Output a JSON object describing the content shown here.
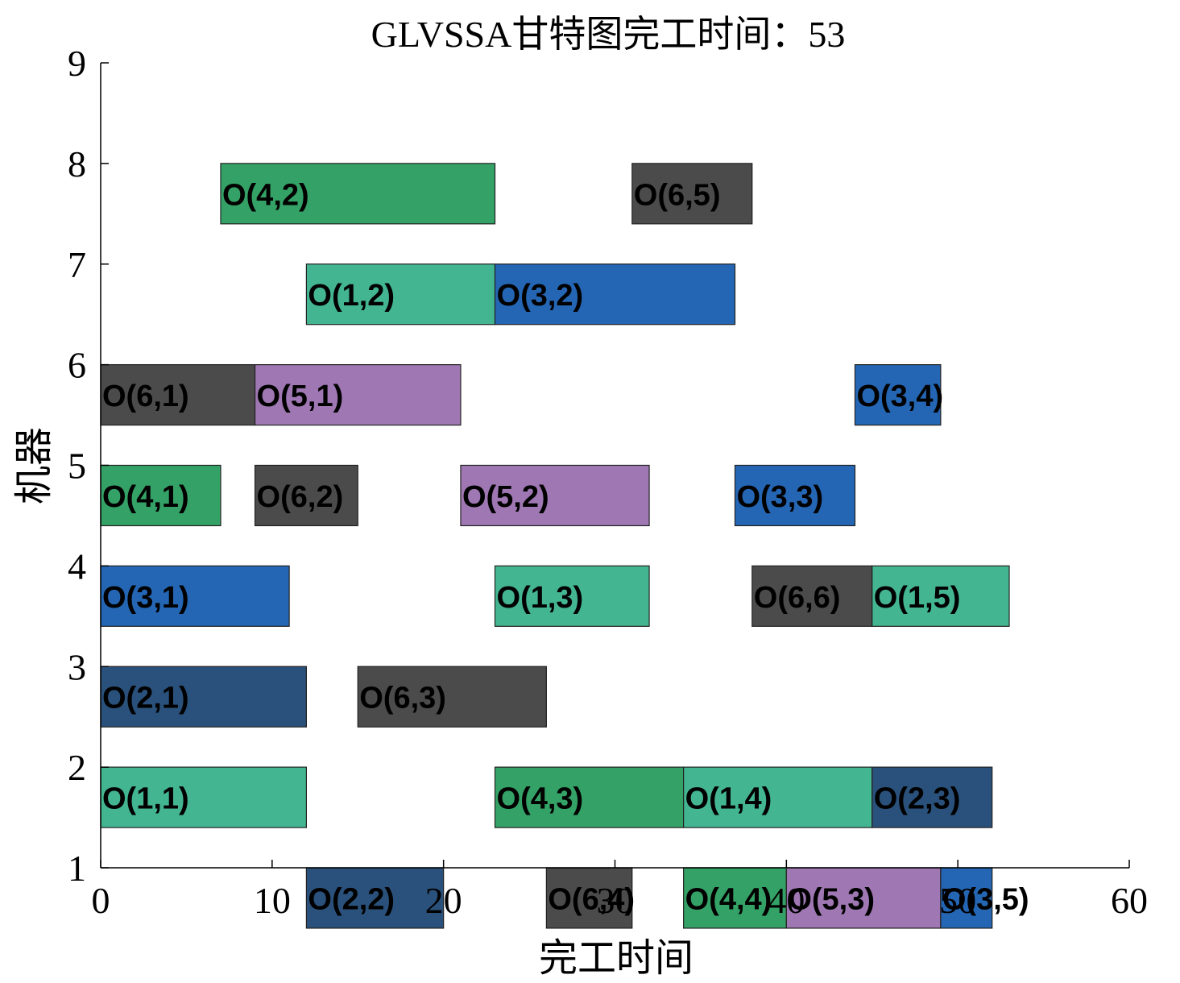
{
  "chart_data": {
    "type": "gantt",
    "title": "GLVSSA甘特图完工时间：53",
    "xlabel": "完工时间",
    "ylabel": "机器",
    "xlim": [
      0,
      60
    ],
    "ylim": [
      1,
      9
    ],
    "xticks": [
      0,
      10,
      20,
      30,
      40,
      50,
      60
    ],
    "yticks": [
      1,
      2,
      3,
      4,
      5,
      6,
      7,
      8,
      9
    ],
    "grid": false,
    "job_colors": {
      "1": "#43b591",
      "2": "#2a517b",
      "3": "#2466b3",
      "4": "#34a266",
      "5": "#9e77b3",
      "6": "#4b4b4b"
    },
    "tasks": [
      {
        "label": "O(4,2)",
        "job": 4,
        "machine": 8,
        "start": 7,
        "end": 23
      },
      {
        "label": "O(6,5)",
        "job": 6,
        "machine": 8,
        "start": 31,
        "end": 38
      },
      {
        "label": "O(1,2)",
        "job": 1,
        "machine": 7,
        "start": 12,
        "end": 23
      },
      {
        "label": "O(3,2)",
        "job": 3,
        "machine": 7,
        "start": 23,
        "end": 37
      },
      {
        "label": "O(6,1)",
        "job": 6,
        "machine": 6,
        "start": 0,
        "end": 9
      },
      {
        "label": "O(5,1)",
        "job": 5,
        "machine": 6,
        "start": 9,
        "end": 21
      },
      {
        "label": "O(3,4)",
        "job": 3,
        "machine": 6,
        "start": 44,
        "end": 49
      },
      {
        "label": "O(4,1)",
        "job": 4,
        "machine": 5,
        "start": 0,
        "end": 7
      },
      {
        "label": "O(6,2)",
        "job": 6,
        "machine": 5,
        "start": 9,
        "end": 15
      },
      {
        "label": "O(5,2)",
        "job": 5,
        "machine": 5,
        "start": 21,
        "end": 32
      },
      {
        "label": "O(3,3)",
        "job": 3,
        "machine": 5,
        "start": 37,
        "end": 44
      },
      {
        "label": "O(3,1)",
        "job": 3,
        "machine": 4,
        "start": 0,
        "end": 11
      },
      {
        "label": "O(1,3)",
        "job": 1,
        "machine": 4,
        "start": 23,
        "end": 32
      },
      {
        "label": "O(6,6)",
        "job": 6,
        "machine": 4,
        "start": 38,
        "end": 45
      },
      {
        "label": "O(1,5)",
        "job": 1,
        "machine": 4,
        "start": 45,
        "end": 53
      },
      {
        "label": "O(2,1)",
        "job": 2,
        "machine": 3,
        "start": 0,
        "end": 12
      },
      {
        "label": "O(6,3)",
        "job": 6,
        "machine": 3,
        "start": 15,
        "end": 26
      },
      {
        "label": "O(1,1)",
        "job": 1,
        "machine": 2,
        "start": 0,
        "end": 12
      },
      {
        "label": "O(4,3)",
        "job": 4,
        "machine": 2,
        "start": 23,
        "end": 34
      },
      {
        "label": "O(1,4)",
        "job": 1,
        "machine": 2,
        "start": 34,
        "end": 45
      },
      {
        "label": "O(2,3)",
        "job": 2,
        "machine": 2,
        "start": 45,
        "end": 52
      },
      {
        "label": "O(2,2)",
        "job": 2,
        "machine": 1,
        "start": 12,
        "end": 20
      },
      {
        "label": "O(6,4)",
        "job": 6,
        "machine": 1,
        "start": 26,
        "end": 31
      },
      {
        "label": "O(4,4)",
        "job": 4,
        "machine": 1,
        "start": 34,
        "end": 40
      },
      {
        "label": "O(5,3)",
        "job": 5,
        "machine": 1,
        "start": 40,
        "end": 49
      },
      {
        "label": "O(3,5)",
        "job": 3,
        "machine": 1,
        "start": 49,
        "end": 52
      }
    ]
  }
}
